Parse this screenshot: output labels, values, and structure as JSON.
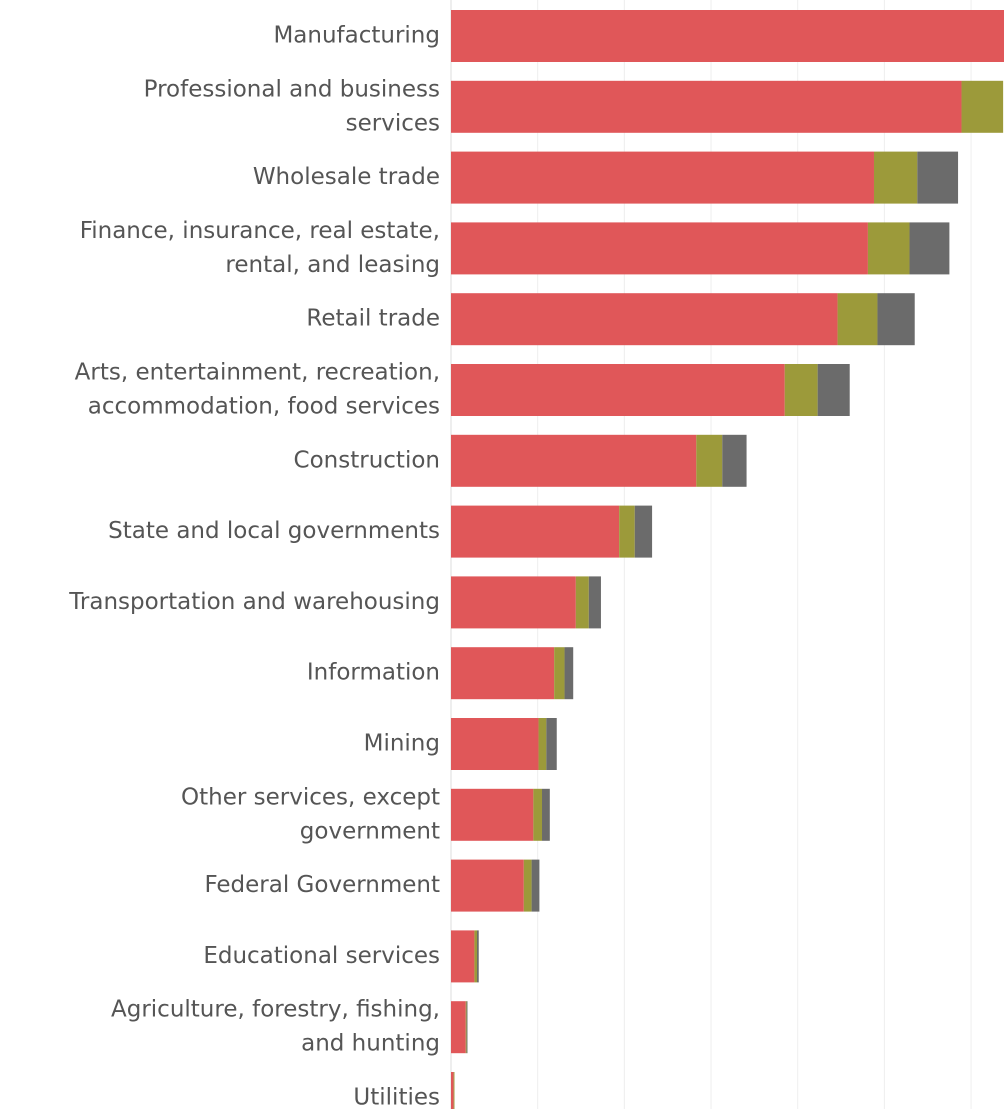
{
  "chart_data": {
    "type": "stacked-bar-horizontal",
    "categories": [
      [
        "Manufacturing"
      ],
      [
        "Professional and business",
        "services"
      ],
      [
        "Wholesale trade"
      ],
      [
        "Finance, insurance, real estate,",
        "rental, and leasing"
      ],
      [
        "Retail trade"
      ],
      [
        "Arts, entertainment, recreation,",
        "accommodation, food services"
      ],
      [
        "Construction"
      ],
      [
        "State and local governments"
      ],
      [
        "Transportation and warehousing"
      ],
      [
        "Information"
      ],
      [
        "Mining"
      ],
      [
        "Other services, except",
        "government"
      ],
      [
        "Federal Government"
      ],
      [
        "Educational services"
      ],
      [
        "Agriculture, forestry, fishing,",
        "and hunting"
      ],
      [
        "Utilities"
      ]
    ],
    "series": [
      {
        "color": "#e05759",
        "values": [
          6.38,
          5.89,
          4.88,
          4.81,
          4.46,
          3.85,
          2.83,
          1.94,
          1.44,
          1.19,
          1.01,
          0.95,
          0.84,
          0.27,
          0.17,
          0.03
        ]
      },
      {
        "color": "#9c9a3a",
        "values": [
          null,
          0.48,
          0.5,
          0.48,
          0.46,
          0.38,
          0.3,
          0.18,
          0.15,
          0.12,
          0.09,
          0.1,
          0.09,
          0.03,
          0.01,
          0.01
        ]
      },
      {
        "color": "#6b6b6b",
        "values": [
          null,
          null,
          0.47,
          0.46,
          0.43,
          0.37,
          0.28,
          0.2,
          0.14,
          0.1,
          0.12,
          0.09,
          0.09,
          0.02,
          0.01,
          0
        ]
      }
    ],
    "xlim": [
      0,
      6.38
    ],
    "xgrid": [
      1,
      2,
      3,
      4,
      5,
      6
    ]
  }
}
